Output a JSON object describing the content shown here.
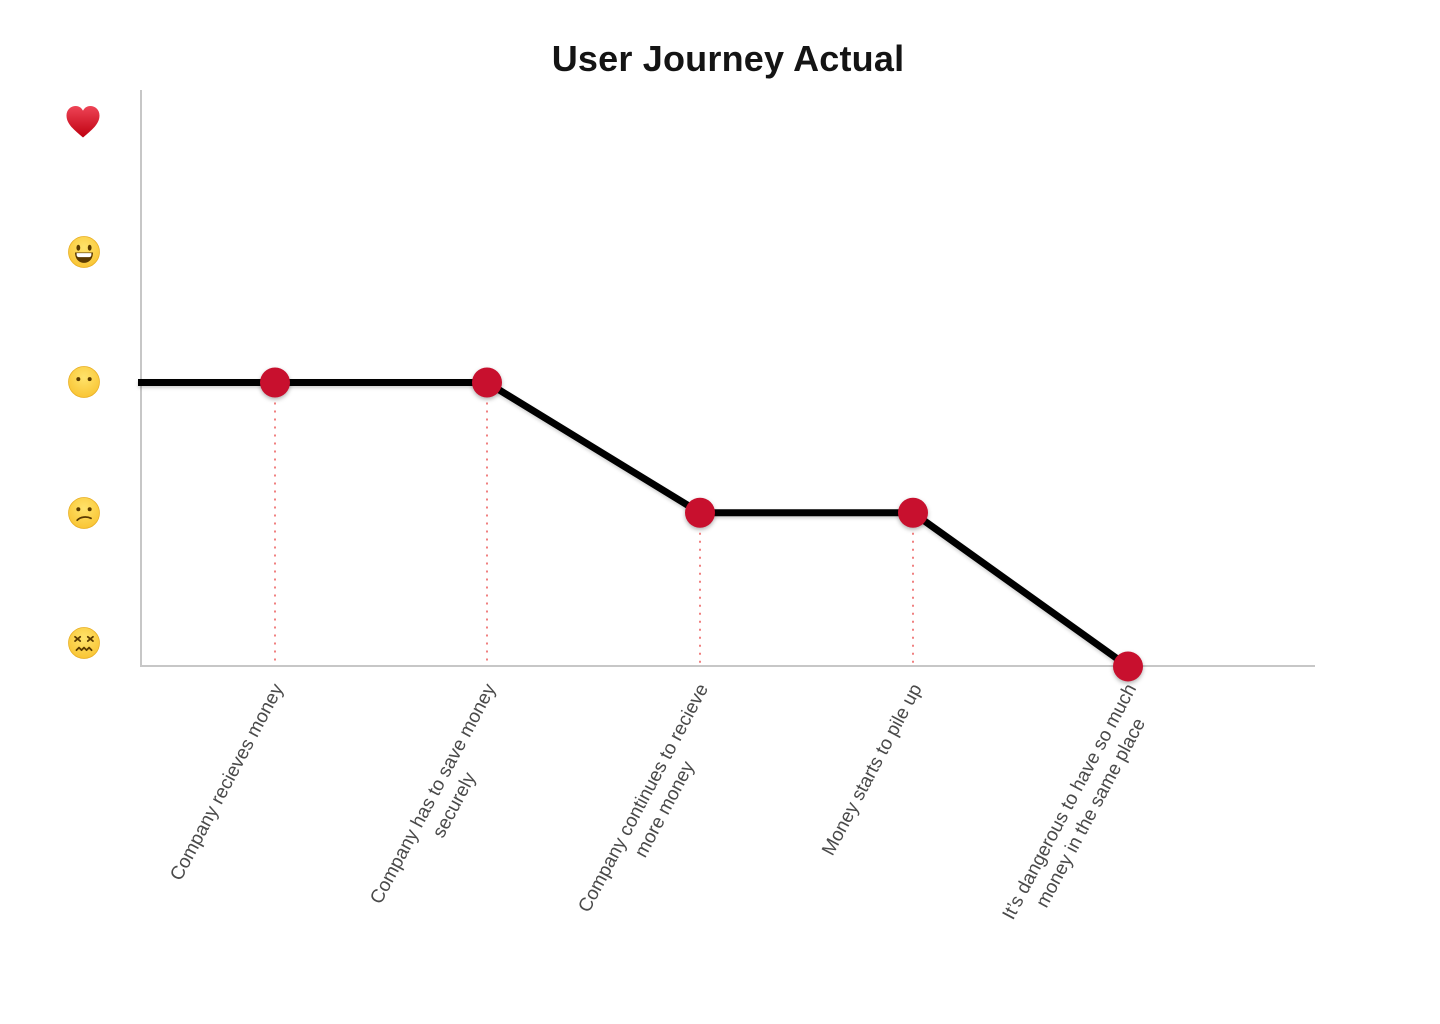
{
  "chart_data": {
    "type": "line",
    "title": "User Journey Actual",
    "grid": "off",
    "legend": "none",
    "y_axis": {
      "type": "emoji-scale",
      "range": [
        0,
        5
      ],
      "levels": [
        {
          "value": 5,
          "emoji": "❤️",
          "name": "red-heart"
        },
        {
          "value": 4,
          "emoji": "😀",
          "name": "grinning-face"
        },
        {
          "value": 3,
          "emoji": "😶",
          "name": "face-without-mouth"
        },
        {
          "value": 2,
          "emoji": "😕",
          "name": "confused-face"
        },
        {
          "value": 1,
          "emoji": "😖",
          "name": "confounded-face"
        }
      ]
    },
    "points": [
      {
        "label_lines": [
          "Company recieves money",
          ""
        ],
        "value": 3
      },
      {
        "label_lines": [
          "Company has to save money",
          "securely"
        ],
        "value": 3
      },
      {
        "label_lines": [
          "Company continues to recieve",
          "more money"
        ],
        "value": 2
      },
      {
        "label_lines": [
          "Money starts to pile up",
          ""
        ],
        "value": 2
      },
      {
        "label_lines": [
          "It’s dangerous to have so much",
          "money in the same place"
        ],
        "value": 0.82
      }
    ],
    "colors": {
      "point": "#c8102e",
      "line": "#000000",
      "guide_dotted": "#f08080",
      "axis": "#c7c7c7",
      "tick_label": "#4a4a4a",
      "title": "#141414"
    }
  }
}
